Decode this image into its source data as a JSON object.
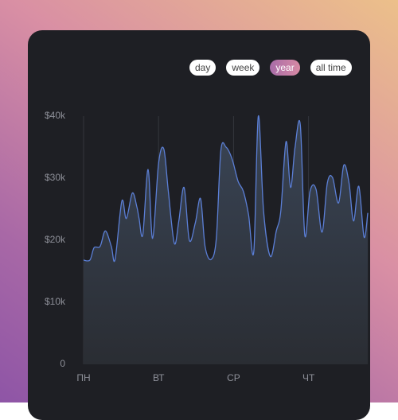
{
  "period_buttons": {
    "labels": [
      "day",
      "week",
      "year",
      "all time"
    ],
    "selected_index": 2
  },
  "chart_data": {
    "type": "area",
    "x": [
      0,
      0.085,
      0.14,
      0.22,
      0.29,
      0.37,
      0.42,
      0.51,
      0.57,
      0.65,
      0.71,
      0.74,
      0.79,
      0.86,
      0.92,
      1.0,
      1.07,
      1.13,
      1.21,
      1.27,
      1.34,
      1.41,
      1.49,
      1.56,
      1.62,
      1.7,
      1.77,
      1.83,
      1.9,
      1.98,
      2.06,
      2.13,
      2.2,
      2.27,
      2.33,
      2.4,
      2.49,
      2.57,
      2.63,
      2.7,
      2.76,
      2.82,
      2.89,
      2.95,
      3.02,
      3.1,
      3.18,
      3.25,
      3.32,
      3.4,
      3.47,
      3.54,
      3.6,
      3.67,
      3.74,
      3.79
    ],
    "values": [
      16800,
      16800,
      18800,
      19000,
      21500,
      19000,
      16900,
      26300,
      23500,
      27600,
      25400,
      23500,
      20900,
      31400,
      20300,
      32400,
      34700,
      27900,
      19500,
      23100,
      28500,
      20000,
      22800,
      26700,
      19000,
      16900,
      20300,
      34400,
      35000,
      33100,
      29500,
      27900,
      24100,
      18200,
      40000,
      24700,
      17400,
      21500,
      24700,
      35900,
      28500,
      35000,
      38600,
      20800,
      27900,
      28200,
      21300,
      29200,
      30100,
      26000,
      32100,
      29200,
      23100,
      28700,
      20500,
      24400
    ],
    "color": "#5b7fd6",
    "xlim": [
      0,
      3.8
    ],
    "xticks": [
      {
        "value": 0,
        "label": "ПН"
      },
      {
        "value": 1,
        "label": "ВТ"
      },
      {
        "value": 2,
        "label": "СР"
      },
      {
        "value": 3,
        "label": "ЧТ"
      }
    ],
    "ylim": [
      0,
      40000
    ],
    "yticks": [
      0,
      {
        "value": 10000,
        "label": "$10k"
      },
      {
        "value": 20000,
        "label": "$20k"
      },
      {
        "value": 30000,
        "label": "$30k"
      },
      {
        "value": 40000,
        "label": "$40k"
      }
    ],
    "grid": true
  }
}
